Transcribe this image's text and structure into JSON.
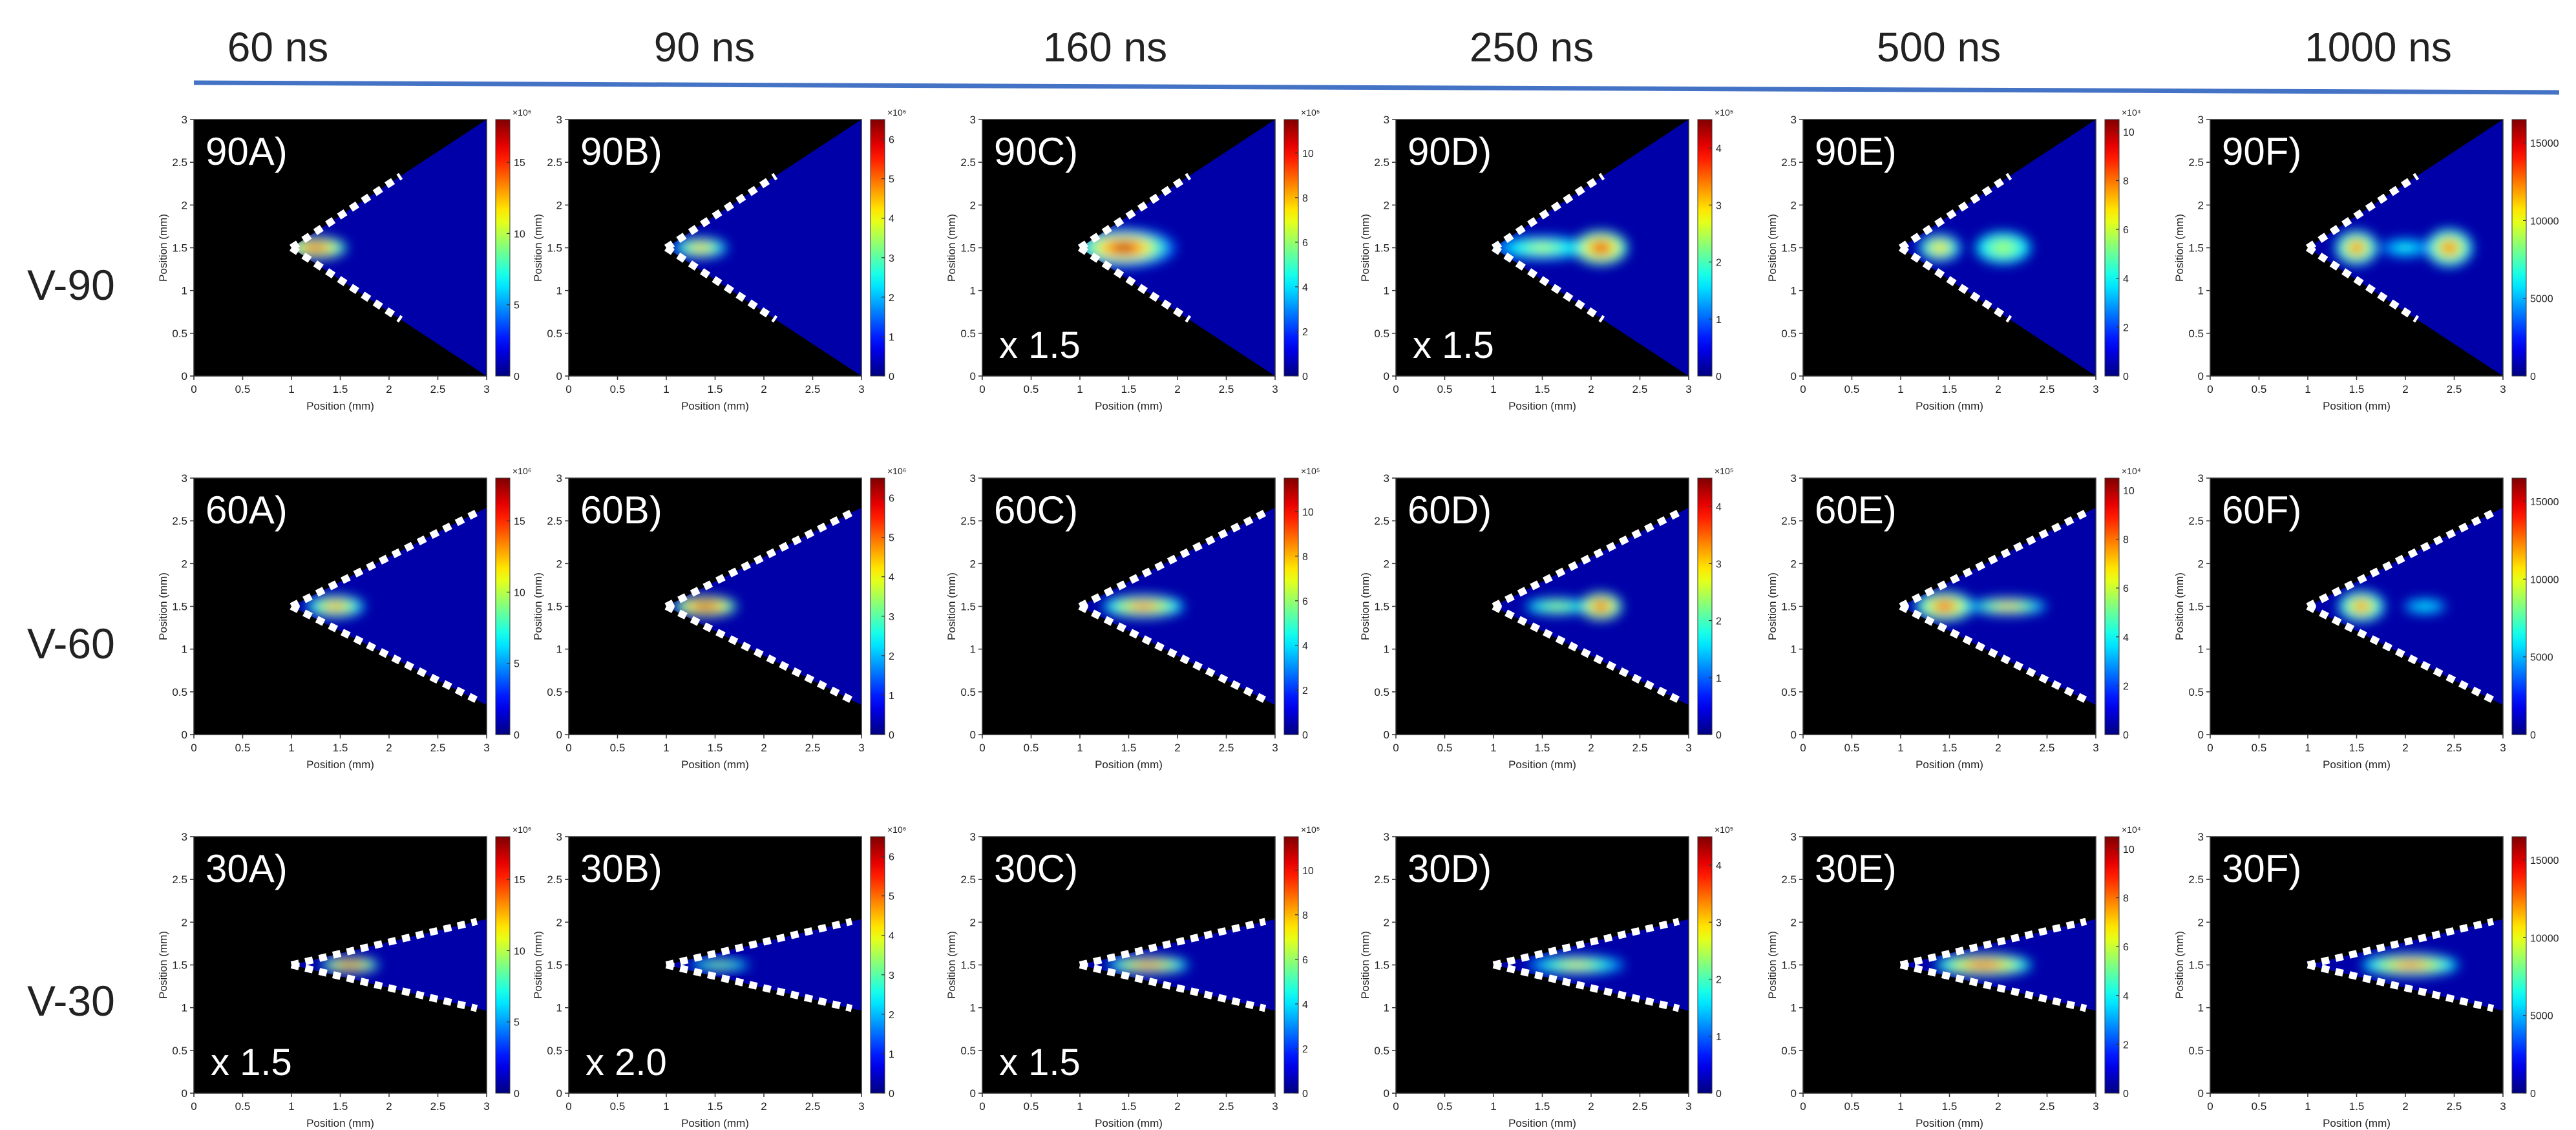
{
  "figure": {
    "time_headers": [
      "60 ns",
      "90 ns",
      "160 ns",
      "250 ns",
      "500 ns",
      "1000 ns"
    ],
    "row_labels": [
      "V-90",
      "V-60",
      "V-30"
    ],
    "header_rule_color": "#4472c4"
  },
  "chart_data": {
    "type": "heatmap",
    "title": "",
    "xlabel": "Position (mm)",
    "ylabel": "Position (mm)",
    "xlim": [
      0,
      3
    ],
    "ylim": [
      0,
      3
    ],
    "x_ticks": [
      "0",
      "0.5",
      "1",
      "1.5",
      "2",
      "2.5",
      "3"
    ],
    "y_ticks": [
      "0",
      "0.5",
      "1",
      "1.5",
      "2",
      "2.5",
      "3"
    ],
    "colormap": "jet",
    "columns": [
      {
        "time": "60 ns",
        "colorbar_max": 18,
        "exponent": "×10⁶",
        "cb_ticks": [
          {
            "v": 0,
            "t": "0"
          },
          {
            "v": 5,
            "t": "5"
          },
          {
            "v": 10,
            "t": "10"
          },
          {
            "v": 15,
            "t": "15"
          }
        ]
      },
      {
        "time": "90 ns",
        "colorbar_max": 6.5,
        "exponent": "×10⁶",
        "cb_ticks": [
          {
            "v": 0,
            "t": "0"
          },
          {
            "v": 1,
            "t": "1"
          },
          {
            "v": 2,
            "t": "2"
          },
          {
            "v": 3,
            "t": "3"
          },
          {
            "v": 4,
            "t": "4"
          },
          {
            "v": 5,
            "t": "5"
          },
          {
            "v": 6,
            "t": "6"
          }
        ]
      },
      {
        "time": "160 ns",
        "colorbar_max": 11.5,
        "exponent": "×10⁵",
        "cb_ticks": [
          {
            "v": 0,
            "t": "0"
          },
          {
            "v": 2,
            "t": "2"
          },
          {
            "v": 4,
            "t": "4"
          },
          {
            "v": 6,
            "t": "6"
          },
          {
            "v": 8,
            "t": "8"
          },
          {
            "v": 10,
            "t": "10"
          }
        ]
      },
      {
        "time": "250 ns",
        "colorbar_max": 4.5,
        "exponent": "×10⁵",
        "cb_ticks": [
          {
            "v": 0,
            "t": "0"
          },
          {
            "v": 1,
            "t": "1"
          },
          {
            "v": 2,
            "t": "2"
          },
          {
            "v": 3,
            "t": "3"
          },
          {
            "v": 4,
            "t": "4"
          }
        ]
      },
      {
        "time": "500 ns",
        "colorbar_max": 10.5,
        "exponent": "×10⁴",
        "cb_ticks": [
          {
            "v": 0,
            "t": "0"
          },
          {
            "v": 2,
            "t": "2"
          },
          {
            "v": 4,
            "t": "4"
          },
          {
            "v": 6,
            "t": "6"
          },
          {
            "v": 8,
            "t": "8"
          },
          {
            "v": 10,
            "t": "10"
          }
        ]
      },
      {
        "time": "1000 ns",
        "colorbar_max": 16500,
        "exponent": "",
        "cb_ticks": [
          {
            "v": 0,
            "t": "0"
          },
          {
            "v": 5000,
            "t": "5000"
          },
          {
            "v": 10000,
            "t": "10000"
          },
          {
            "v": 15000,
            "t": "15000"
          }
        ]
      }
    ],
    "rows": [
      {
        "row": "V-90",
        "angle_deg": 90,
        "panels": [
          {
            "label": "90A)",
            "scale": "",
            "blobs": [
              {
                "x": 1.25,
                "y": 1.5,
                "sx": 0.32,
                "sy": 0.13,
                "a": 0.92
              }
            ]
          },
          {
            "label": "90B)",
            "scale": "",
            "blobs": [
              {
                "x": 1.35,
                "y": 1.5,
                "sx": 0.28,
                "sy": 0.12,
                "a": 0.72
              }
            ]
          },
          {
            "label": "90C)",
            "scale": "x 1.5",
            "blobs": [
              {
                "x": 1.45,
                "y": 1.5,
                "sx": 0.42,
                "sy": 0.18,
                "a": 1.0
              }
            ]
          },
          {
            "label": "90D)",
            "scale": "x 1.5",
            "blobs": [
              {
                "x": 1.5,
                "y": 1.5,
                "sx": 0.5,
                "sy": 0.14,
                "a": 0.58
              },
              {
                "x": 2.1,
                "y": 1.5,
                "sx": 0.28,
                "sy": 0.2,
                "a": 0.92
              }
            ]
          },
          {
            "label": "90E)",
            "scale": "",
            "blobs": [
              {
                "x": 1.4,
                "y": 1.5,
                "sx": 0.22,
                "sy": 0.16,
                "a": 0.72
              },
              {
                "x": 2.05,
                "y": 1.5,
                "sx": 0.4,
                "sy": 0.26,
                "a": 0.55
              }
            ]
          },
          {
            "label": "90F)",
            "scale": "",
            "blobs": [
              {
                "x": 1.5,
                "y": 1.5,
                "sx": 0.22,
                "sy": 0.2,
                "a": 0.82
              },
              {
                "x": 2.45,
                "y": 1.5,
                "sx": 0.24,
                "sy": 0.22,
                "a": 0.82
              },
              {
                "x": 2.0,
                "y": 1.5,
                "sx": 0.35,
                "sy": 0.15,
                "a": 0.4
              }
            ]
          }
        ]
      },
      {
        "row": "V-60",
        "angle_deg": 60,
        "panels": [
          {
            "label": "60A)",
            "scale": "",
            "blobs": [
              {
                "x": 1.45,
                "y": 1.5,
                "sx": 0.3,
                "sy": 0.13,
                "a": 0.78
              }
            ]
          },
          {
            "label": "60B)",
            "scale": "",
            "blobs": [
              {
                "x": 1.4,
                "y": 1.5,
                "sx": 0.33,
                "sy": 0.12,
                "a": 0.98
              }
            ]
          },
          {
            "label": "60C)",
            "scale": "",
            "blobs": [
              {
                "x": 1.65,
                "y": 1.5,
                "sx": 0.42,
                "sy": 0.13,
                "a": 0.82
              }
            ]
          },
          {
            "label": "60D)",
            "scale": "",
            "blobs": [
              {
                "x": 1.65,
                "y": 1.5,
                "sx": 0.45,
                "sy": 0.13,
                "a": 0.55
              },
              {
                "x": 2.1,
                "y": 1.5,
                "sx": 0.22,
                "sy": 0.16,
                "a": 0.92
              }
            ]
          },
          {
            "label": "60E)",
            "scale": "",
            "blobs": [
              {
                "x": 1.45,
                "y": 1.5,
                "sx": 0.3,
                "sy": 0.17,
                "a": 0.88
              },
              {
                "x": 2.1,
                "y": 1.5,
                "sx": 0.4,
                "sy": 0.1,
                "a": 0.72
              }
            ]
          },
          {
            "label": "60F)",
            "scale": "",
            "blobs": [
              {
                "x": 1.55,
                "y": 1.5,
                "sx": 0.24,
                "sy": 0.18,
                "a": 0.8
              },
              {
                "x": 2.2,
                "y": 1.5,
                "sx": 0.5,
                "sy": 0.2,
                "a": 0.35
              }
            ]
          }
        ]
      },
      {
        "row": "V-30",
        "angle_deg": 30,
        "panels": [
          {
            "label": "30A)",
            "scale": "x 1.5",
            "blobs": [
              {
                "x": 1.6,
                "y": 1.5,
                "sx": 0.3,
                "sy": 0.09,
                "a": 0.92
              }
            ]
          },
          {
            "label": "30B)",
            "scale": "x 2.0",
            "blobs": [
              {
                "x": 1.55,
                "y": 1.5,
                "sx": 0.42,
                "sy": 0.09,
                "a": 0.55
              }
            ]
          },
          {
            "label": "30C)",
            "scale": "x 1.5",
            "blobs": [
              {
                "x": 1.7,
                "y": 1.5,
                "sx": 0.42,
                "sy": 0.1,
                "a": 0.85
              }
            ]
          },
          {
            "label": "30D)",
            "scale": "",
            "blobs": [
              {
                "x": 1.85,
                "y": 1.5,
                "sx": 0.5,
                "sy": 0.11,
                "a": 0.65
              }
            ]
          },
          {
            "label": "30E)",
            "scale": "",
            "blobs": [
              {
                "x": 1.85,
                "y": 1.5,
                "sx": 0.5,
                "sy": 0.13,
                "a": 0.88
              }
            ]
          },
          {
            "label": "30F)",
            "scale": "",
            "blobs": [
              {
                "x": 2.05,
                "y": 1.5,
                "sx": 0.5,
                "sy": 0.13,
                "a": 0.82
              }
            ]
          }
        ]
      }
    ]
  }
}
